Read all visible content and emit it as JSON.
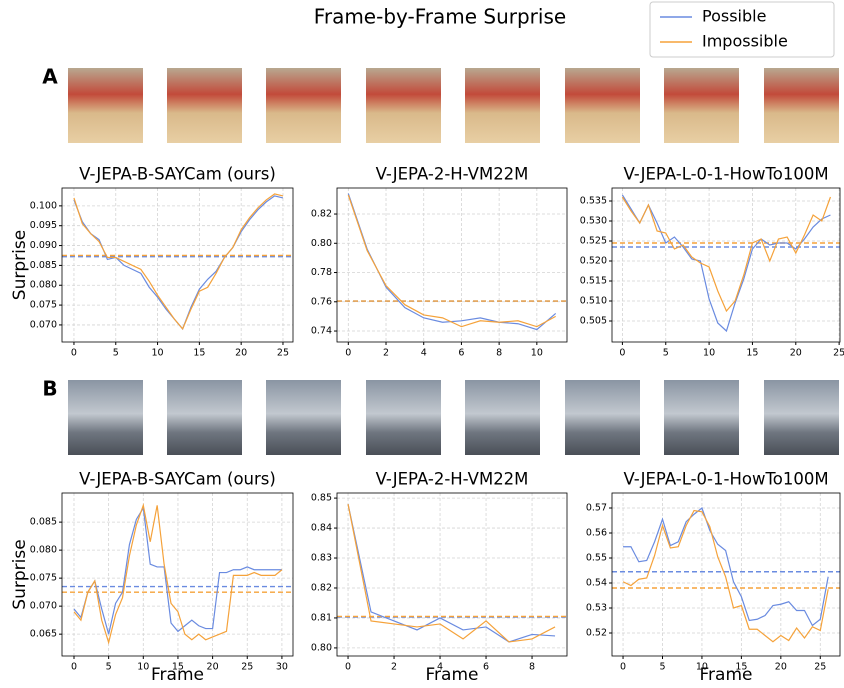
{
  "title": "Frame-by-Frame Surprise",
  "legend": [
    {
      "name": "Possible",
      "color": "#6a8be0"
    },
    {
      "name": "Impossible",
      "color": "#f5a23a"
    }
  ],
  "panels": [
    "A",
    "B"
  ],
  "chart_data": [
    {
      "type": "line",
      "title": "V-JEPA-B-SAYCam (ours)",
      "y_label": "Surprise",
      "grid": true,
      "x": [
        0,
        1,
        2,
        3,
        4,
        5,
        6,
        7,
        8,
        9,
        10,
        11,
        12,
        13,
        14,
        15,
        16,
        17,
        18,
        19,
        20,
        21,
        22,
        23,
        24,
        25
      ],
      "xlim": [
        -1.43,
        26.2
      ],
      "ylim": [
        0.0657,
        0.1045
      ],
      "xticks": [
        0,
        5,
        10,
        15,
        20,
        25
      ],
      "yticks": [
        {
          "value": 0.07,
          "label": "0.070"
        },
        0.075,
        {
          "value": 0.08,
          "label": "0.080"
        },
        0.085,
        {
          "value": 0.09,
          "label": "0.090"
        },
        0.095,
        {
          "value": 0.1,
          "label": "0.100"
        }
      ],
      "series": [
        {
          "color": "#6a8be0",
          "mean": 0.0872,
          "values": [
            0.1015,
            0.096,
            0.093,
            0.0915,
            0.0865,
            0.087,
            0.085,
            0.084,
            0.083,
            0.0795,
            0.077,
            0.074,
            0.0715,
            0.069,
            0.0745,
            0.079,
            0.0815,
            0.0835,
            0.087,
            0.0895,
            0.0935,
            0.0965,
            0.099,
            0.101,
            0.1025,
            0.102
          ]
        },
        {
          "color": "#f5a23a",
          "mean": 0.0875,
          "values": [
            0.102,
            0.0955,
            0.093,
            0.091,
            0.087,
            0.087,
            0.086,
            0.085,
            0.084,
            0.081,
            0.0775,
            0.0745,
            0.0715,
            0.069,
            0.074,
            0.0785,
            0.0795,
            0.083,
            0.087,
            0.0895,
            0.094,
            0.097,
            0.0995,
            0.1015,
            0.103,
            0.1025
          ]
        }
      ]
    },
    {
      "type": "line",
      "title": "V-JEPA-2-H-VM22M",
      "grid": true,
      "x": [
        0,
        1,
        2,
        3,
        4,
        5,
        6,
        7,
        8,
        9,
        10,
        11
      ],
      "xlim": [
        -0.6,
        11.6
      ],
      "ylim": [
        0.7325,
        0.8378
      ],
      "xticks": [
        0,
        2,
        4,
        6,
        8,
        10
      ],
      "yticks": [
        0.74,
        0.76,
        0.78,
        {
          "value": 0.8,
          "label": "0.80"
        },
        0.82
      ],
      "series": [
        {
          "color": "#6a8be0",
          "mean": 0.7605,
          "values": [
            0.834,
            0.796,
            0.77,
            0.756,
            0.749,
            0.746,
            0.747,
            0.749,
            0.746,
            0.745,
            0.741,
            0.752
          ]
        },
        {
          "color": "#f5a23a",
          "mean": 0.7605,
          "values": [
            0.833,
            0.795,
            0.771,
            0.758,
            0.751,
            0.749,
            0.743,
            0.747,
            0.746,
            0.747,
            0.743,
            0.75
          ]
        }
      ]
    },
    {
      "type": "line",
      "title": "V-JEPA-L-0-1-HowTo100M",
      "grid": true,
      "x": [
        0,
        1,
        2,
        3,
        4,
        5,
        6,
        7,
        8,
        9,
        10,
        11,
        12,
        13,
        14,
        15,
        16,
        17,
        18,
        19,
        20,
        21,
        22,
        23,
        24
      ],
      "xlim": [
        -1.2,
        25.1
      ],
      "ylim": [
        0.49975,
        0.53825
      ],
      "xticks": [
        0,
        5,
        10,
        15,
        20,
        25
      ],
      "yticks": [
        0.505,
        {
          "value": 0.51,
          "label": "0.510"
        },
        0.515,
        {
          "value": 0.52,
          "label": "0.520"
        },
        0.525,
        {
          "value": 0.53,
          "label": "0.530"
        },
        0.535
      ],
      "series": [
        {
          "color": "#6a8be0",
          "mean": 0.5235,
          "values": [
            0.5365,
            0.533,
            0.5295,
            0.534,
            0.5295,
            0.5245,
            0.526,
            0.5235,
            0.5205,
            0.52,
            0.5105,
            0.5045,
            0.5025,
            0.5095,
            0.5155,
            0.523,
            0.5255,
            0.524,
            0.5245,
            0.5245,
            0.523,
            0.5255,
            0.5285,
            0.5305,
            0.5315
          ]
        },
        {
          "color": "#f5a23a",
          "mean": 0.5245,
          "values": [
            0.536,
            0.5325,
            0.5295,
            0.534,
            0.5275,
            0.527,
            0.523,
            0.524,
            0.521,
            0.5195,
            0.5185,
            0.5125,
            0.5075,
            0.51,
            0.5165,
            0.5245,
            0.5255,
            0.52,
            0.5255,
            0.526,
            0.522,
            0.5265,
            0.5315,
            0.53,
            0.536
          ]
        }
      ]
    },
    {
      "type": "line",
      "title": "V-JEPA-B-SAYCam (ours)",
      "y_label": "Surprise",
      "x_label": "Frame",
      "grid": true,
      "x": [
        0,
        1,
        2,
        3,
        4,
        5,
        6,
        7,
        8,
        9,
        10,
        11,
        12,
        13,
        14,
        15,
        16,
        17,
        18,
        19,
        20,
        21,
        22,
        23,
        24,
        25,
        26,
        27,
        28,
        29,
        30
      ],
      "xlim": [
        -1.73,
        31.6
      ],
      "ylim": [
        0.0611,
        0.0902
      ],
      "xticks": [
        0,
        5,
        10,
        15,
        20,
        25,
        30
      ],
      "yticks": [
        0.065,
        {
          "value": 0.07,
          "label": "0.070"
        },
        0.075,
        {
          "value": 0.08,
          "label": "0.080"
        },
        0.085
      ],
      "series": [
        {
          "color": "#6a8be0",
          "mean": 0.0735,
          "values": [
            0.0695,
            0.068,
            0.0725,
            0.0745,
            0.0695,
            0.065,
            0.0705,
            0.0725,
            0.081,
            0.0855,
            0.0875,
            0.0775,
            0.077,
            0.077,
            0.067,
            0.0655,
            0.0665,
            0.0675,
            0.0665,
            0.066,
            0.066,
            0.076,
            0.076,
            0.0765,
            0.0765,
            0.077,
            0.0765,
            0.0765,
            0.0765,
            0.0765,
            0.0765
          ]
        },
        {
          "color": "#f5a23a",
          "mean": 0.0725,
          "values": [
            0.069,
            0.0675,
            0.0725,
            0.0745,
            0.0675,
            0.0635,
            0.0685,
            0.0715,
            0.079,
            0.0845,
            0.088,
            0.0815,
            0.088,
            0.0775,
            0.0705,
            0.069,
            0.065,
            0.064,
            0.065,
            0.064,
            0.0645,
            0.065,
            0.0655,
            0.0755,
            0.0755,
            0.0755,
            0.076,
            0.0755,
            0.0755,
            0.0755,
            0.0765
          ]
        }
      ]
    },
    {
      "type": "line",
      "title": "V-JEPA-2-H-VM22M",
      "x_label": "Frame",
      "grid": true,
      "x": [
        0,
        1,
        2,
        3,
        4,
        5,
        6,
        7,
        8,
        9
      ],
      "xlim": [
        -0.48,
        9.52
      ],
      "ylim": [
        0.7973,
        0.8517
      ],
      "xticks": [
        0,
        2,
        4,
        6,
        8
      ],
      "yticks": [
        {
          "value": 0.8,
          "label": "0.80"
        },
        0.81,
        0.82,
        0.83,
        0.84,
        0.85
      ],
      "series": [
        {
          "color": "#6a8be0",
          "mean": 0.8103,
          "values": [
            0.848,
            0.812,
            0.809,
            0.806,
            0.81,
            0.806,
            0.807,
            0.802,
            0.8045,
            0.804
          ]
        },
        {
          "color": "#f5a23a",
          "mean": 0.8105,
          "values": [
            0.848,
            0.809,
            0.808,
            0.807,
            0.808,
            0.803,
            0.809,
            0.802,
            0.803,
            0.807
          ]
        }
      ]
    },
    {
      "type": "line",
      "title": "V-JEPA-L-0-1-HowTo100M",
      "x_label": "Frame",
      "grid": true,
      "x": [
        0,
        1,
        2,
        3,
        4,
        5,
        6,
        7,
        8,
        9,
        10,
        11,
        12,
        13,
        14,
        15,
        16,
        17,
        18,
        19,
        20,
        21,
        22,
        23,
        24,
        25,
        26
      ],
      "xlim": [
        -1.4,
        27.5
      ],
      "ylim": [
        0.5108,
        0.576
      ],
      "xticks": [
        0,
        5,
        10,
        15,
        20,
        25
      ],
      "yticks": [
        0.52,
        0.53,
        0.54,
        0.55,
        0.56,
        0.57
      ],
      "series": [
        {
          "color": "#6a8be0",
          "mean": 0.5445,
          "values": [
            0.5545,
            0.5545,
            0.5485,
            0.549,
            0.5565,
            0.5655,
            0.555,
            0.5565,
            0.5645,
            0.5675,
            0.57,
            0.561,
            0.5555,
            0.553,
            0.5405,
            0.5345,
            0.525,
            0.5255,
            0.527,
            0.531,
            0.5315,
            0.5325,
            0.529,
            0.529,
            0.523,
            0.5255,
            0.5425
          ]
        },
        {
          "color": "#f5a23a",
          "mean": 0.538,
          "values": [
            0.5405,
            0.539,
            0.5415,
            0.542,
            0.551,
            0.563,
            0.554,
            0.5545,
            0.563,
            0.569,
            0.5685,
            0.5625,
            0.5505,
            0.5425,
            0.53,
            0.531,
            0.5215,
            0.5215,
            0.519,
            0.5165,
            0.519,
            0.517,
            0.522,
            0.518,
            0.5225,
            0.521,
            0.5375
          ]
        }
      ]
    }
  ]
}
